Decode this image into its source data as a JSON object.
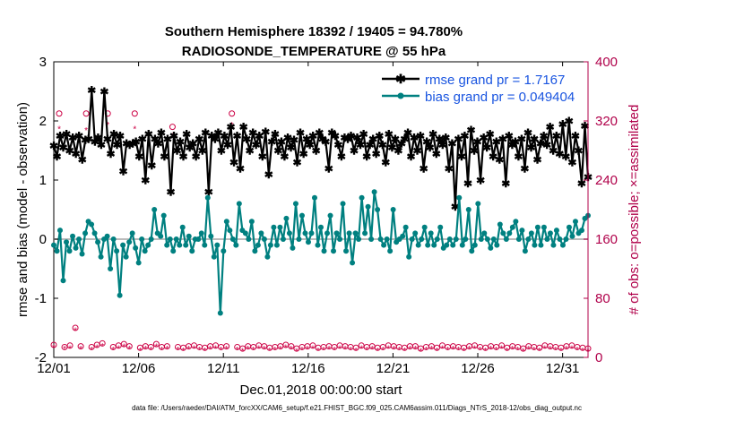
{
  "chart_data": {
    "type": "line",
    "title": "Southern Hemisphere 18392 / 19405 = 94.780%",
    "subtitle": "RADIOSONDE_TEMPERATURE @ 55 hPa",
    "xlabel": "Dec.01,2018 00:00:00 start",
    "ylabel": "rmse and bias (model - observation)",
    "ylabel_right": "# of obs: o=possible; ×=assimilated",
    "footnote": "data file: /Users/raeder/DAI/ATM_forcXX/CAM6_setup/f.e21.FHIST_BGC.f09_025.CAM6assim.011/Diags_NTrS_2018-12/obs_diag_output.nc",
    "xlim": [
      0,
      31.5
    ],
    "ylim": [
      -2,
      3
    ],
    "ylim_right": [
      0,
      400
    ],
    "x_ticks": [
      0,
      5,
      10,
      15,
      20,
      25,
      30
    ],
    "x_tick_labels": [
      "12/01",
      "12/06",
      "12/11",
      "12/16",
      "12/21",
      "12/26",
      "12/31"
    ],
    "y_ticks": [
      -2,
      -1,
      0,
      1,
      2,
      3
    ],
    "y_tick_labels": [
      "-2",
      "-1",
      "0",
      "1",
      "2",
      "3"
    ],
    "y_right_ticks": [
      0,
      80,
      160,
      240,
      320,
      400
    ],
    "y_right_tick_labels": [
      "0",
      "80",
      "160",
      "240",
      "320",
      "400"
    ],
    "zero_line": 0,
    "legend_position": "top-right",
    "series": [
      {
        "name": "rmse grand pr = 1.7167",
        "axis": "left",
        "color": "#000000",
        "marker": "asterisk",
        "values": [
          1.58,
          1.4,
          1.75,
          1.55,
          1.78,
          1.5,
          1.72,
          1.45,
          1.75,
          1.35,
          1.68,
          1.7,
          2.52,
          1.65,
          1.72,
          1.6,
          2.5,
          1.7,
          1.45,
          1.78,
          1.6,
          1.75,
          1.15,
          1.62,
          1.6,
          1.62,
          1.65,
          1.4,
          1.7,
          1.0,
          1.78,
          1.25,
          1.7,
          1.62,
          1.8,
          1.4,
          1.7,
          0.8,
          1.75,
          1.5,
          1.65,
          1.4,
          1.78,
          1.55,
          1.62,
          1.4,
          1.7,
          1.5,
          1.8,
          0.8,
          1.75,
          1.7,
          1.8,
          1.5,
          1.75,
          1.6,
          1.9,
          1.3,
          1.75,
          1.2,
          1.9,
          1.7,
          1.5,
          1.8,
          1.6,
          1.75,
          1.4,
          1.82,
          1.1,
          1.65,
          1.78,
          1.5,
          1.65,
          1.4,
          1.72,
          1.55,
          1.68,
          1.3,
          1.8,
          1.45,
          1.7,
          1.6,
          1.75,
          1.5,
          1.8,
          1.7,
          1.65,
          1.2,
          1.8,
          1.75,
          1.6,
          1.4,
          1.72,
          1.7,
          1.75,
          1.5,
          1.72,
          1.6,
          1.78,
          1.4,
          1.6,
          1.7,
          1.45,
          1.75,
          1.6,
          1.3,
          1.78,
          1.55,
          1.7,
          1.5,
          1.62,
          1.7,
          1.8,
          1.4,
          1.72,
          1.5,
          1.75,
          1.2,
          1.65,
          1.55,
          1.78,
          1.45,
          1.7,
          1.6,
          1.72,
          1.2,
          1.62,
          0.55,
          1.7,
          1.4,
          1.75,
          0.95,
          1.85,
          1.5,
          1.65,
          1.0,
          1.72,
          1.55,
          1.78,
          1.4,
          1.65,
          1.35,
          1.7,
          0.95,
          1.75,
          1.6,
          1.65,
          1.4,
          1.7,
          1.2,
          1.8,
          1.55,
          1.7,
          1.35,
          1.62,
          1.75,
          1.6,
          1.9,
          1.5,
          1.75,
          1.45,
          1.95,
          1.4,
          2.0,
          1.3,
          1.75,
          1.5,
          0.95,
          1.92,
          1.05
        ]
      },
      {
        "name": "bias grand pr = 0.049404",
        "axis": "left",
        "color": "#008080",
        "marker": "dot",
        "values": [
          -0.1,
          -0.2,
          0.15,
          -0.7,
          -0.05,
          -0.2,
          0.05,
          -0.15,
          0.0,
          -0.25,
          0.1,
          0.3,
          0.25,
          0.1,
          -0.05,
          -0.3,
          0.0,
          0.05,
          -0.5,
          0.0,
          -0.2,
          -0.95,
          -0.1,
          -0.3,
          -0.05,
          0.1,
          -0.15,
          -0.4,
          0.0,
          -0.2,
          -0.1,
          0.0,
          0.5,
          0.1,
          0.05,
          0.4,
          -0.1,
          0.0,
          -0.2,
          0.0,
          -0.1,
          0.2,
          -0.1,
          0.05,
          -0.2,
          0.0,
          0.0,
          0.1,
          -0.1,
          0.7,
          0.05,
          -0.3,
          -0.1,
          -1.25,
          -0.2,
          0.3,
          0.15,
          0.0,
          -0.1,
          0.6,
          0.15,
          0.1,
          0.0,
          0.3,
          -0.2,
          -0.1,
          0.1,
          0.0,
          -0.3,
          -0.1,
          0.2,
          -0.1,
          0.2,
          0.0,
          0.35,
          0.1,
          -0.15,
          0.6,
          0.0,
          0.4,
          0.1,
          -0.05,
          0.1,
          0.7,
          -0.1,
          0.2,
          -0.2,
          0.1,
          0.4,
          -0.2,
          0.1,
          0.0,
          0.6,
          -0.2,
          0.1,
          -0.4,
          0.1,
          0.0,
          0.7,
          0.1,
          0.55,
          0.0,
          0.8,
          0.5,
          0.0,
          -0.1,
          0.0,
          -0.2,
          0.5,
          -0.05,
          0.0,
          0.05,
          0.2,
          -0.3,
          0.0,
          0.1,
          -0.1,
          0.0,
          0.2,
          -0.1,
          0.1,
          -0.1,
          0.0,
          0.2,
          -0.15,
          -0.1,
          0.0,
          -0.1,
          0.0,
          0.7,
          -0.1,
          0.0,
          0.5,
          -0.2,
          -0.1,
          0.6,
          0.0,
          0.1,
          0.0,
          -0.15,
          0.0,
          -0.1,
          0.25,
          0.1,
          0.0,
          0.1,
          0.2,
          0.3,
          0.0,
          0.15,
          -0.2,
          0.0,
          0.1,
          -0.1,
          0.2,
          -0.1,
          0.2,
          0.0,
          0.1,
          -0.1,
          0.15,
          0.0,
          -0.1,
          0.0,
          0.2,
          0.05,
          0.3,
          0.1,
          0.15,
          0.35,
          0.4
        ]
      },
      {
        "name": "possible",
        "axis": "right",
        "color": "#cc0044",
        "marker": "circle",
        "values": [
          17,
          330,
          14,
          16,
          40,
          15,
          330,
          14,
          17,
          19,
          330,
          14,
          16,
          18,
          15,
          330,
          13,
          15,
          14,
          18,
          14,
          15,
          312,
          14,
          13,
          15,
          16,
          14,
          13,
          15,
          16,
          14,
          15,
          330,
          14,
          12,
          15,
          14,
          16,
          15,
          13,
          14,
          15,
          17,
          15,
          12,
          14,
          15,
          16,
          13,
          14,
          15,
          14,
          16,
          15,
          14,
          13,
          16,
          14,
          15,
          13,
          14,
          16,
          15,
          14,
          13,
          15,
          15,
          12,
          14,
          15,
          13,
          16,
          14,
          15,
          14,
          13,
          15,
          16,
          14,
          13,
          15,
          14,
          16,
          13,
          15,
          14,
          12,
          15,
          14,
          13,
          16,
          15,
          14,
          13,
          15,
          16,
          14,
          13,
          12
        ]
      },
      {
        "name": "assimilated",
        "axis": "right",
        "color": "#cc0044",
        "marker": "x",
        "values": [
          14,
          310,
          12,
          13,
          37,
          12,
          308,
          11,
          14,
          16,
          315,
          11,
          13,
          15,
          12,
          310,
          10,
          12,
          11,
          15,
          11,
          12,
          300,
          11,
          10,
          12,
          13,
          11,
          10,
          12,
          13,
          11,
          12,
          315,
          11,
          9,
          12,
          11,
          13,
          12,
          10,
          11,
          12,
          14,
          12,
          9,
          11,
          12,
          13,
          10,
          11,
          12,
          11,
          13,
          12,
          11,
          10,
          13,
          11,
          12,
          10,
          11,
          13,
          12,
          11,
          10,
          12,
          12,
          9,
          11,
          12,
          10,
          13,
          11,
          12,
          11,
          10,
          12,
          13,
          11,
          10,
          12,
          11,
          13,
          10,
          12,
          11,
          9,
          12,
          11,
          10,
          13,
          12,
          11,
          10,
          12,
          13,
          11,
          10,
          9
        ]
      }
    ]
  }
}
